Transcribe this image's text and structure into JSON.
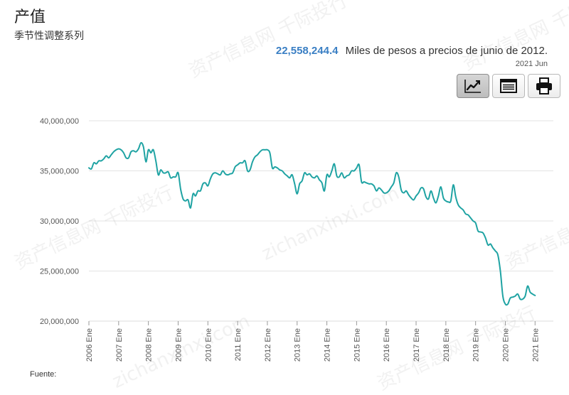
{
  "header": {
    "title": "产值",
    "subtitle": "季节性调整系列"
  },
  "headline": {
    "value": "22,558,244.4",
    "unit": "Miles de pesos a precios de junio de 2012.",
    "period": "2021 Jun"
  },
  "toolbar": {
    "icons": [
      "line-chart-icon",
      "table-icon",
      "print-icon"
    ],
    "active": "line-chart-icon"
  },
  "footer": {
    "source_label": "Fuente:"
  },
  "watermark": {
    "text_cn": "资产信息网 千际投行",
    "text_en": "zichanxinxi.com"
  },
  "colors": {
    "line": "#1fa3a3",
    "accent": "#3a7fc4",
    "grid": "#e3e3e3"
  },
  "chart_data": {
    "type": "line",
    "title": "",
    "xlabel": "",
    "ylabel": "",
    "x_start": "2006-01",
    "x_end": "2021-06",
    "frequency": "monthly",
    "ylim": [
      20000000,
      40000000
    ],
    "yticks": [
      20000000,
      25000000,
      30000000,
      35000000,
      40000000
    ],
    "ytick_labels": [
      "20,000,000",
      "25,000,000",
      "30,000,000",
      "35,000,000",
      "40,000,000"
    ],
    "xtick_labels": [
      "2006 Ene",
      "2007 Ene",
      "2008 Ene",
      "2009 Ene",
      "2010 Ene",
      "2011 Ene",
      "2012 Ene",
      "2013 Ene",
      "2014 Ene",
      "2015 Ene",
      "2016 Ene",
      "2017 Ene",
      "2018 Ene",
      "2019 Ene",
      "2020 Ene",
      "2021 Ene"
    ],
    "grid": true,
    "series": [
      {
        "values": [
          35300000,
          35200000,
          35800000,
          35700000,
          36000000,
          36000000,
          36200000,
          36500000,
          36300000,
          36600000,
          36900000,
          37100000,
          37200000,
          37100000,
          36800000,
          36300000,
          36300000,
          36900000,
          37000000,
          36900000,
          37200000,
          37800000,
          37400000,
          35900000,
          37100000,
          36800000,
          37100000,
          36000000,
          34600000,
          35100000,
          34800000,
          34800000,
          34900000,
          34300000,
          34400000,
          34400000,
          34800000,
          33200000,
          32200000,
          32000000,
          32100000,
          31300000,
          32700000,
          32500000,
          33000000,
          33000000,
          33700000,
          33800000,
          33500000,
          34200000,
          34700000,
          34800000,
          34700000,
          34600000,
          35000000,
          34700000,
          34600000,
          34700000,
          34800000,
          35400000,
          35600000,
          35800000,
          35800000,
          36000000,
          35000000,
          35100000,
          35900000,
          36400000,
          36600000,
          36900000,
          37100000,
          37100000,
          37100000,
          36800000,
          35300000,
          35400000,
          35300000,
          35100000,
          35000000,
          34700000,
          34500000,
          34300000,
          34600000,
          33700000,
          32700000,
          33700000,
          34000000,
          34800000,
          34600000,
          34700000,
          34400000,
          34300000,
          34500000,
          34100000,
          33800000,
          33000000,
          34600000,
          34400000,
          35000000,
          35700000,
          34500000,
          34400000,
          34800000,
          34300000,
          34500000,
          34600000,
          35000000,
          35000000,
          35300000,
          35600000,
          33900000,
          33900000,
          33800000,
          33700000,
          33700000,
          33500000,
          33000000,
          33300000,
          33100000,
          32800000,
          32800000,
          33000000,
          33400000,
          33800000,
          34800000,
          34400000,
          33100000,
          32800000,
          33000000,
          32600000,
          32300000,
          32100000,
          32500000,
          32800000,
          33300000,
          33200000,
          32400000,
          32200000,
          33000000,
          32300000,
          31800000,
          32500000,
          33400000,
          32300000,
          32000000,
          31900000,
          32000000,
          33600000,
          32400000,
          31600000,
          31300000,
          31100000,
          30700000,
          30600000,
          30300000,
          30000000,
          29800000,
          29000000,
          28900000,
          28800000,
          28300000,
          27600000,
          27700000,
          27300000,
          27000000,
          26600000,
          25000000,
          22500000,
          21700000,
          21700000,
          22300000,
          22400000,
          22500000,
          22700000,
          22200000,
          22200000,
          22500000,
          23500000,
          22900000,
          22700000,
          22558244.4
        ]
      }
    ]
  }
}
